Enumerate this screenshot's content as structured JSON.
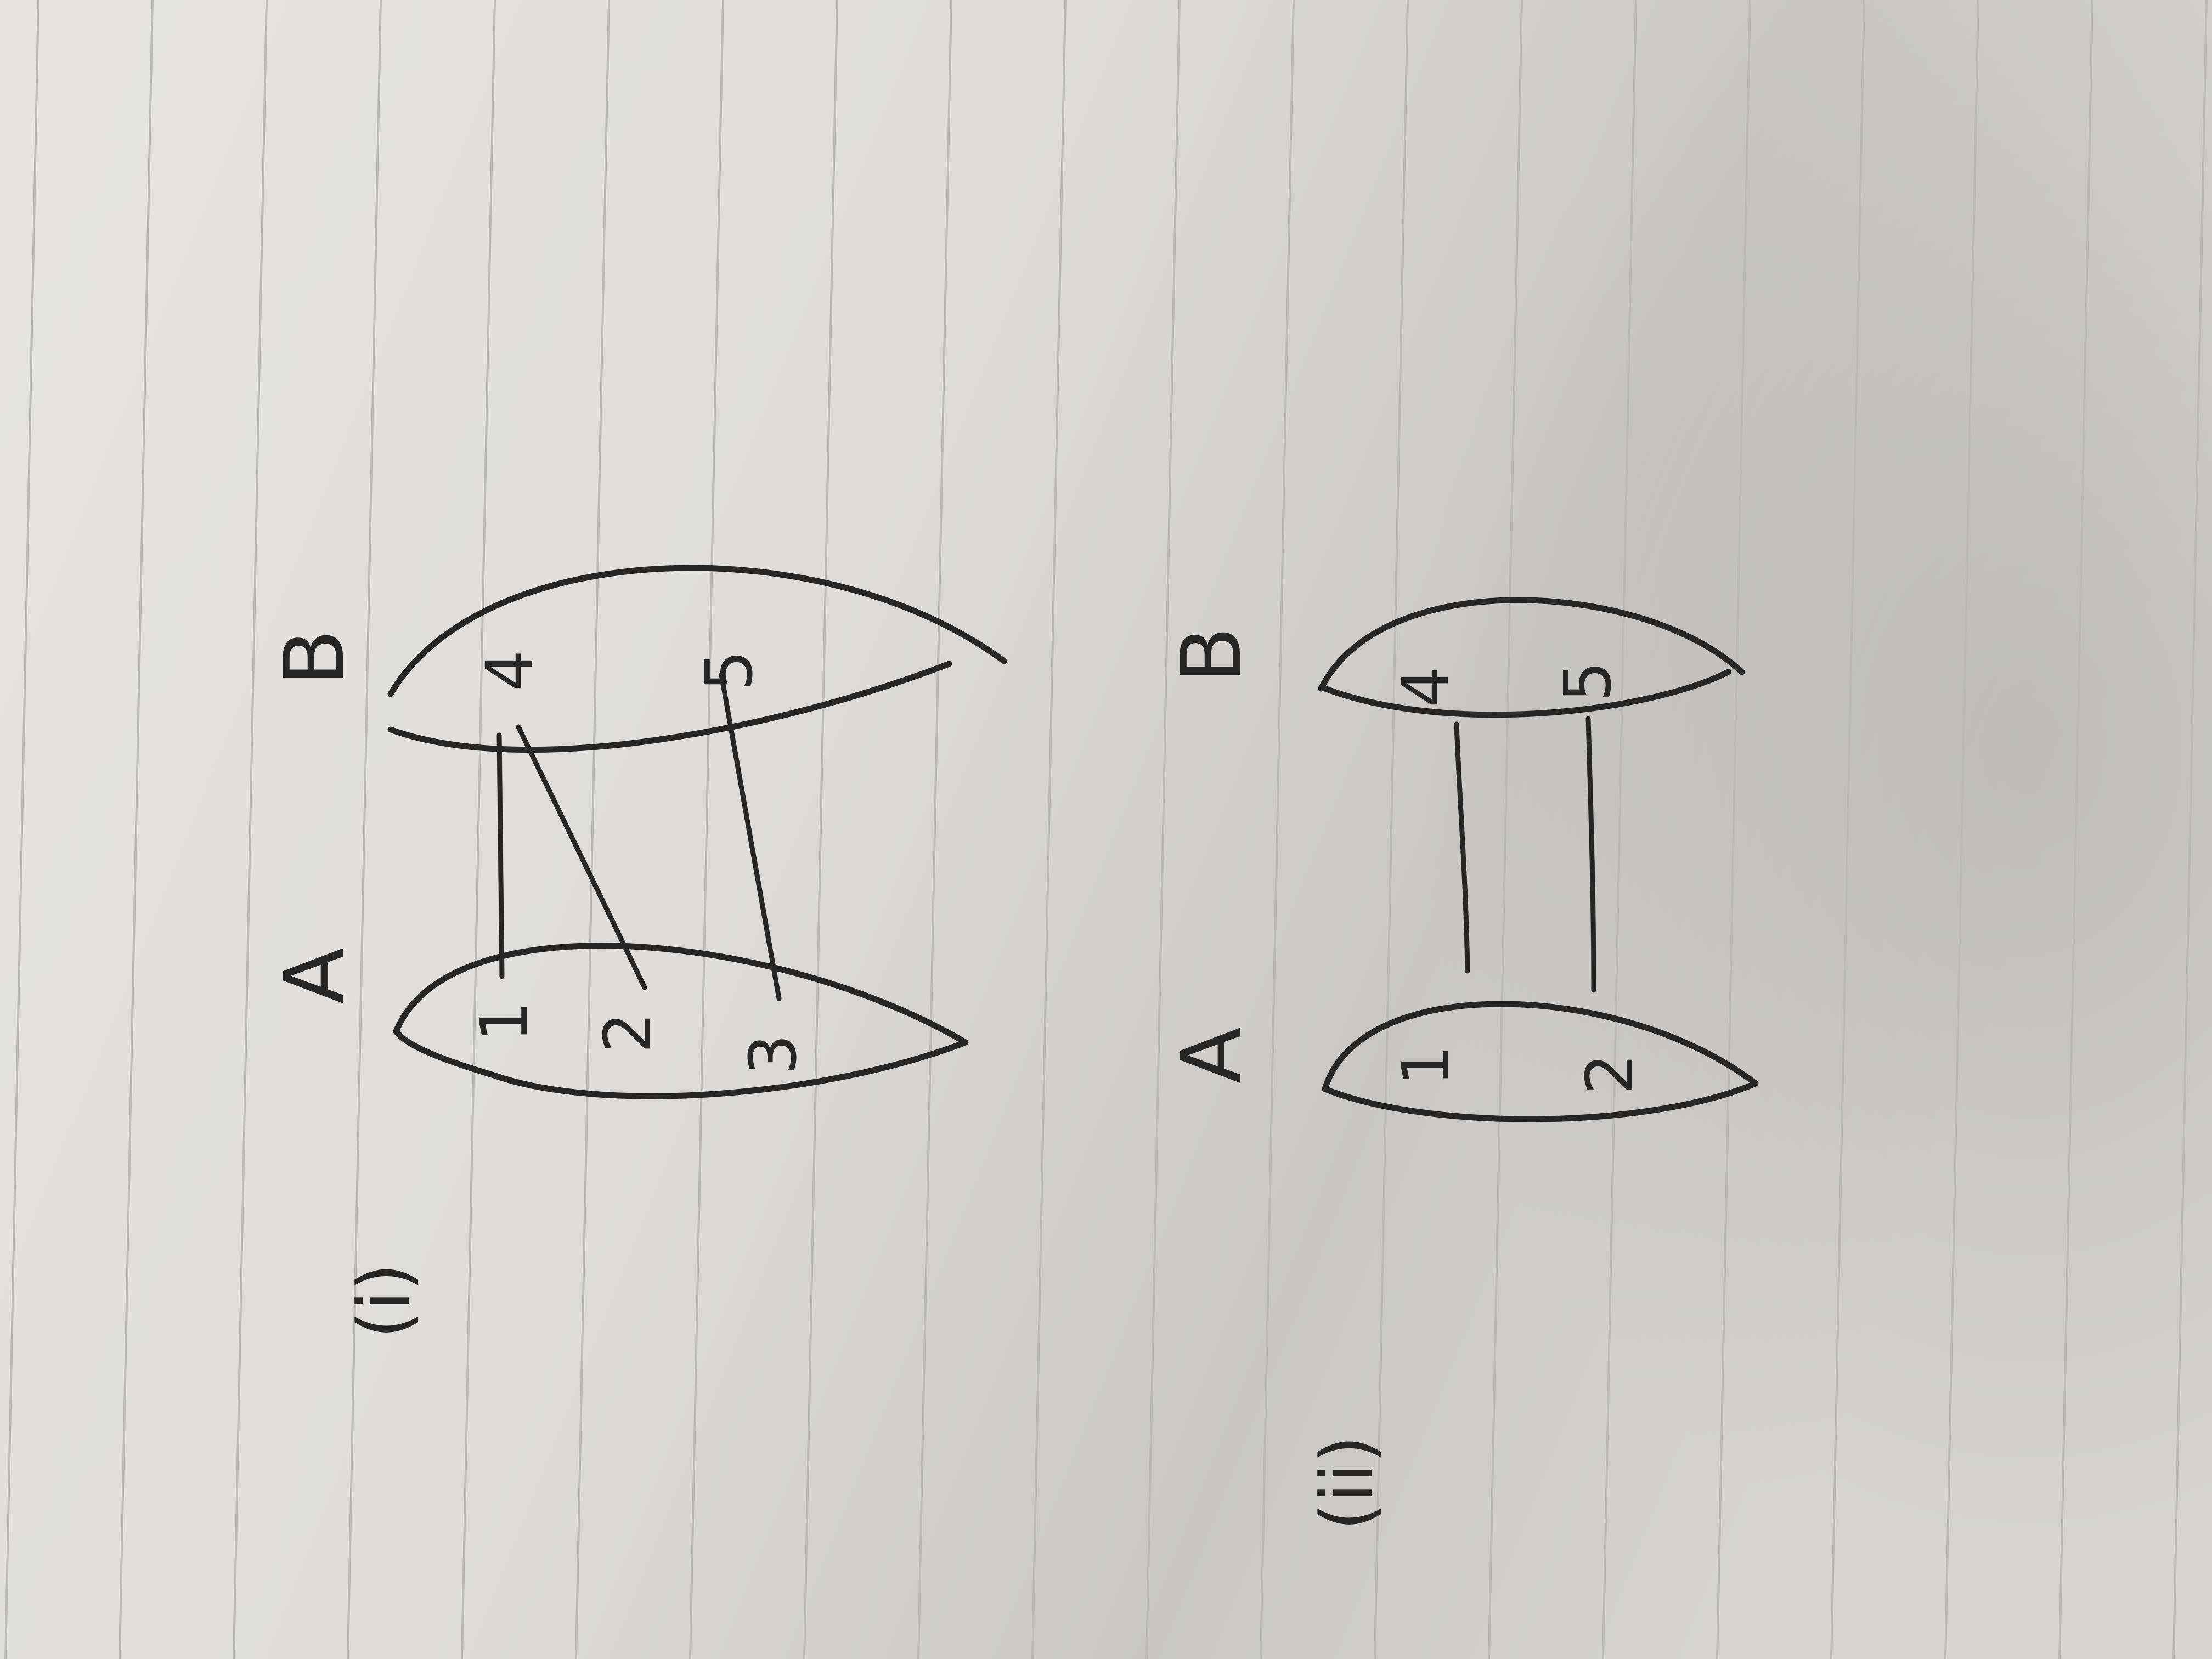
{
  "page_background": "#dcdbd9",
  "line_color": "#b9b9b7",
  "ink_color": "#262626",
  "diagrams": [
    {
      "part_label": "(i)",
      "set_a": {
        "label": "A",
        "elements": [
          "1",
          "2",
          "3"
        ]
      },
      "set_b": {
        "label": "B",
        "elements": [
          "4",
          "5"
        ]
      },
      "mappings": [
        {
          "from": "1",
          "to": "4"
        },
        {
          "from": "2",
          "to": "4"
        },
        {
          "from": "3",
          "to": "5"
        }
      ]
    },
    {
      "part_label": "(ii)",
      "set_a": {
        "label": "A",
        "elements": [
          "1",
          "2"
        ]
      },
      "set_b": {
        "label": "B",
        "elements": [
          "4",
          "5"
        ]
      },
      "mappings": [
        {
          "from": "1",
          "to": "4"
        },
        {
          "from": "2",
          "to": "5"
        }
      ]
    }
  ]
}
